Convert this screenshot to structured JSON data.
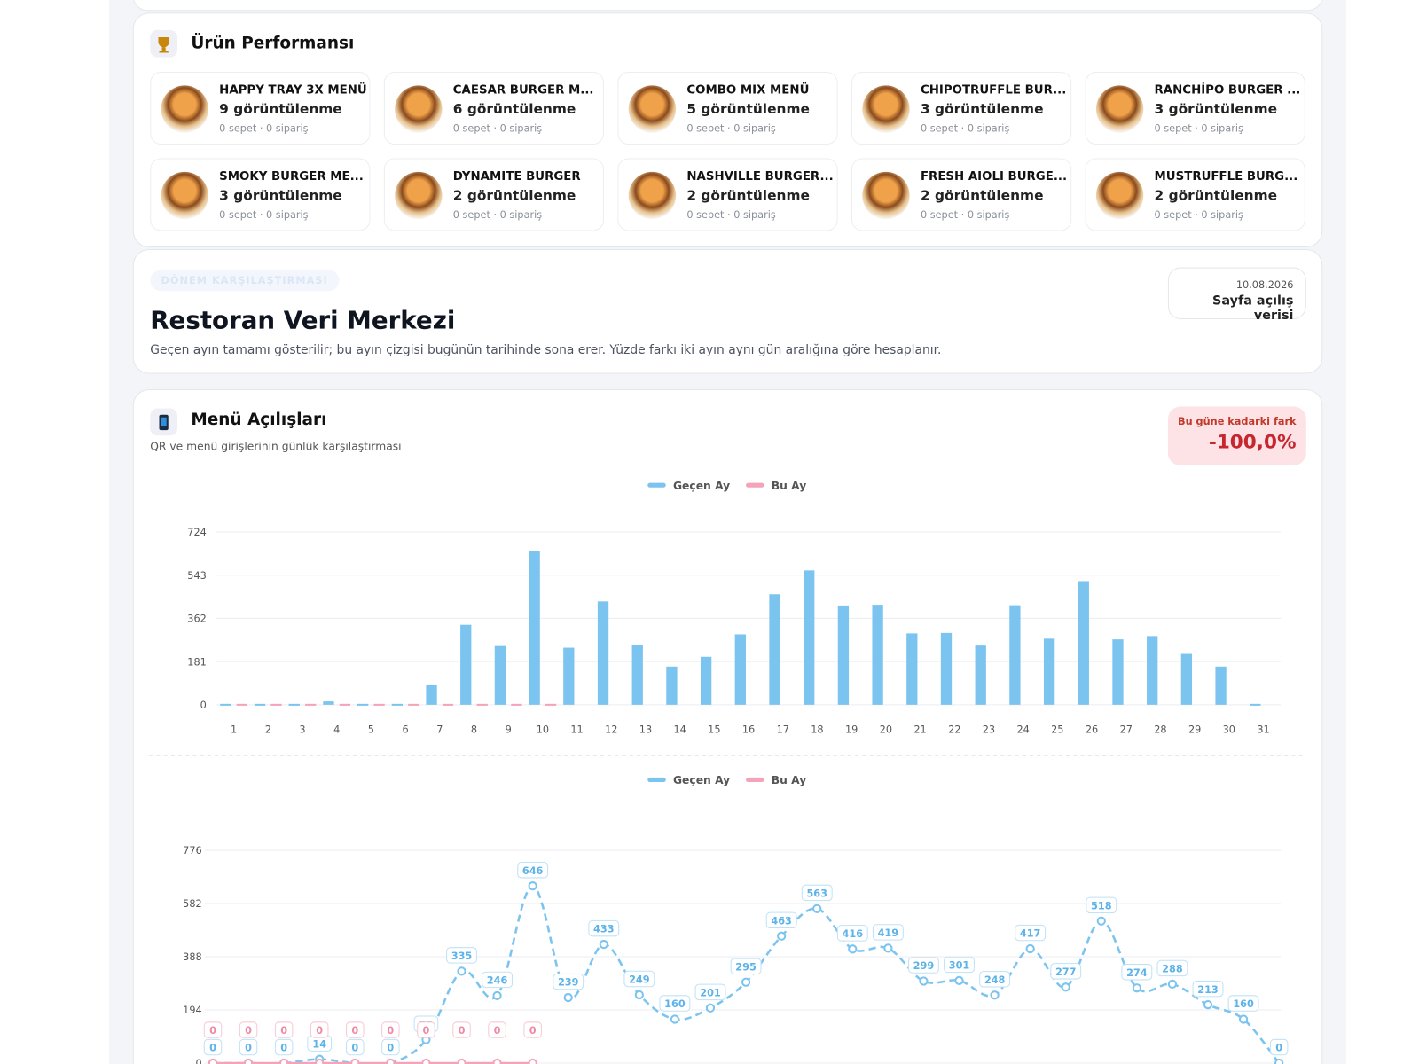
{
  "products_panel": {
    "title": "Ürün Performansı",
    "items": [
      {
        "name": "HAPPY TRAY 3X MENÜ",
        "views": "9 görüntülenme",
        "stats": "0 sepet · 0 sipariş"
      },
      {
        "name": "CAESAR BURGER M...",
        "views": "6 görüntülenme",
        "stats": "0 sepet · 0 sipariş"
      },
      {
        "name": "COMBO MIX MENÜ",
        "views": "5 görüntülenme",
        "stats": "0 sepet · 0 sipariş"
      },
      {
        "name": "CHIPOTRUFFLE BUR...",
        "views": "3 görüntülenme",
        "stats": "0 sepet · 0 sipariş"
      },
      {
        "name": "RANCHİPO BURGER ...",
        "views": "3 görüntülenme",
        "stats": "0 sepet · 0 sipariş"
      },
      {
        "name": "SMOKY BURGER ME...",
        "views": "3 görüntülenme",
        "stats": "0 sepet · 0 sipariş"
      },
      {
        "name": "DYNAMITE BURGER",
        "views": "2 görüntülenme",
        "stats": "0 sepet · 0 sipariş"
      },
      {
        "name": "NASHVILLE BURGER...",
        "views": "2 görüntülenme",
        "stats": "0 sepet · 0 sipariş"
      },
      {
        "name": "FRESH AIOLI BURGE...",
        "views": "2 görüntülenme",
        "stats": "0 sepet · 0 sipariş"
      },
      {
        "name": "MUSTRUFFLE BURG...",
        "views": "2 görüntülenme",
        "stats": "0 sepet · 0 sipariş"
      }
    ]
  },
  "header": {
    "badge": "DÖNEM KARŞILAŞTIRMASI",
    "title": "Restoran Veri Merkezi",
    "description": "Geçen ayın tamamı gösterilir; bu ayın çizgisi bugünün tarihinde sona erer. Yüzde farkı iki ayın aynı gün aralığına göre hesaplanır.",
    "date": "10.08.2026",
    "date_caption": "Sayfa açılış verisi"
  },
  "menu_panel": {
    "title": "Menü Açılışları",
    "subtitle": "QR ve menü girişlerinin günlük karşılaştırması",
    "diff_label": "Bu güne kadarki fark",
    "diff_value": "-100,0%"
  },
  "chart_data": [
    {
      "type": "bar",
      "categories": [
        "1",
        "2",
        "3",
        "4",
        "5",
        "6",
        "7",
        "8",
        "9",
        "10",
        "11",
        "12",
        "13",
        "14",
        "15",
        "16",
        "17",
        "18",
        "19",
        "20",
        "21",
        "22",
        "23",
        "24",
        "25",
        "26",
        "27",
        "28",
        "29",
        "30",
        "31"
      ],
      "series": [
        {
          "name": "Geçen Ay",
          "color": "#7cc4f0",
          "values": [
            0,
            0,
            0,
            14,
            0,
            0,
            85,
            335,
            246,
            646,
            239,
            433,
            249,
            160,
            201,
            295,
            463,
            563,
            416,
            419,
            299,
            301,
            248,
            417,
            277,
            518,
            274,
            288,
            213,
            160,
            0
          ]
        },
        {
          "name": "Bu Ay",
          "color": "#f4a3b8",
          "values": [
            0,
            0,
            0,
            0,
            0,
            0,
            0,
            0,
            0,
            0,
            null,
            null,
            null,
            null,
            null,
            null,
            null,
            null,
            null,
            null,
            null,
            null,
            null,
            null,
            null,
            null,
            null,
            null,
            null,
            null,
            null
          ]
        }
      ],
      "ylim": [
        0,
        724
      ],
      "yticks": [
        0,
        181,
        362,
        543,
        724
      ],
      "grid": true,
      "legend": "top"
    },
    {
      "type": "line",
      "series": [
        {
          "name": "Geçen Ay",
          "color": "#7cc4f0",
          "values": [
            0,
            0,
            0,
            14,
            0,
            0,
            85,
            335,
            246,
            646,
            239,
            433,
            249,
            160,
            201,
            295,
            463,
            563,
            416,
            419,
            299,
            301,
            248,
            417,
            277,
            518,
            274,
            288,
            213,
            160,
            0
          ]
        },
        {
          "name": "Bu Ay",
          "color": "#f4a3b8",
          "values": [
            0,
            0,
            0,
            0,
            0,
            0,
            0,
            0,
            0,
            0,
            null,
            null,
            null,
            null,
            null,
            null,
            null,
            null,
            null,
            null,
            null,
            null,
            null,
            null,
            null,
            null,
            null,
            null,
            null,
            null,
            null
          ]
        }
      ],
      "ylim": [
        0,
        776
      ],
      "yticks": [
        0,
        194,
        388,
        582,
        776
      ],
      "grid": true,
      "legend": "top"
    }
  ]
}
